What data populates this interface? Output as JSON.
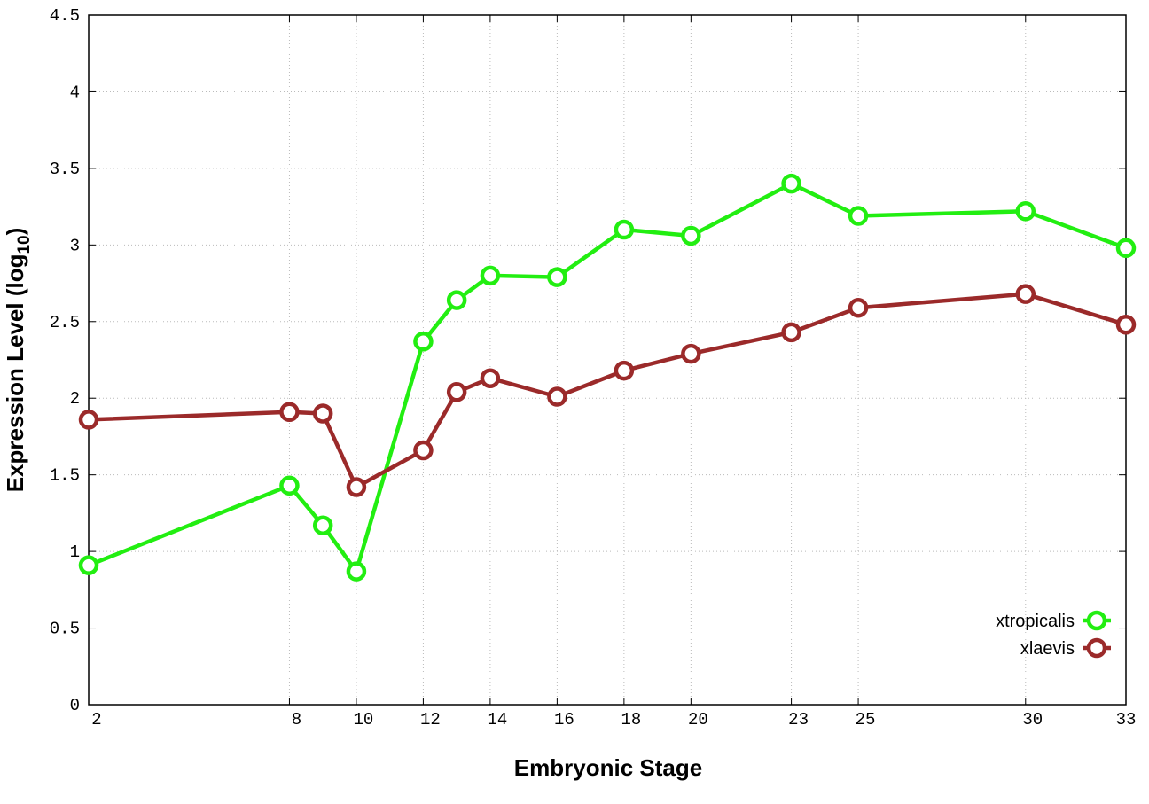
{
  "chart_data": {
    "type": "line",
    "xlabel": "Embryonic Stage",
    "ylabel_main": "Expression Level (log",
    "ylabel_sub": "10",
    "ylabel_close": ")",
    "x": [
      2,
      8,
      9,
      10,
      12,
      13,
      14,
      16,
      18,
      20,
      23,
      25,
      30,
      33
    ],
    "xticks": [
      2,
      8,
      10,
      12,
      14,
      16,
      18,
      20,
      23,
      25,
      30,
      33
    ],
    "xlim": [
      2,
      33
    ],
    "ylim": [
      0,
      4.5
    ],
    "yticks": [
      "0",
      "0.5",
      "1",
      "1.5",
      "2",
      "2.5",
      "3",
      "3.5",
      "4",
      "4.5"
    ],
    "grid": true,
    "legend_position": "bottom-right",
    "series": [
      {
        "name": "xtropicalis",
        "color": "#22ee11",
        "values": [
          0.91,
          1.43,
          1.17,
          0.87,
          2.37,
          2.64,
          2.8,
          2.79,
          3.1,
          3.06,
          3.4,
          3.19,
          3.22,
          2.98
        ]
      },
      {
        "name": "xlaevis",
        "color": "#9b2a2a",
        "values": [
          1.86,
          1.91,
          1.9,
          1.42,
          1.66,
          2.04,
          2.13,
          2.01,
          2.18,
          2.29,
          2.43,
          2.59,
          2.68,
          2.48
        ]
      }
    ]
  }
}
